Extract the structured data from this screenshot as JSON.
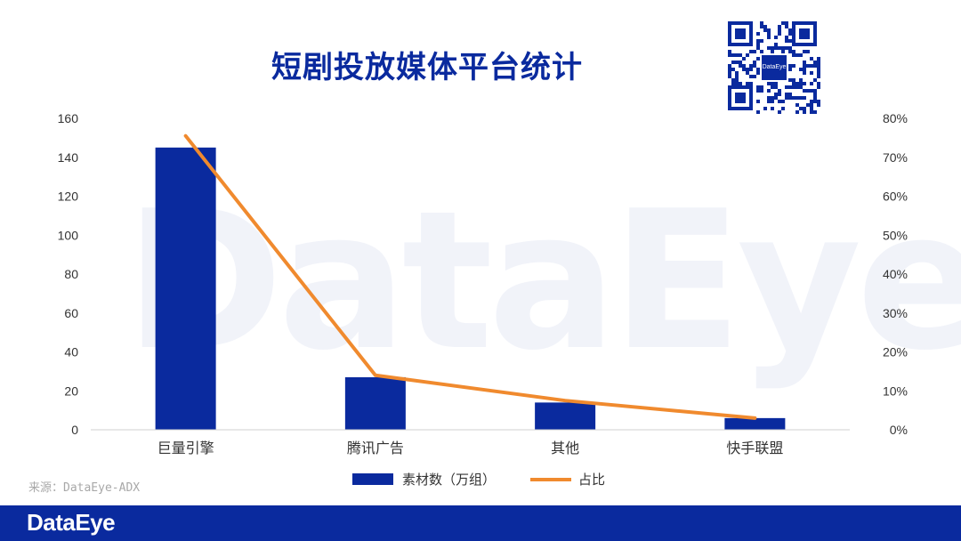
{
  "watermark": "DataEye",
  "qr_center_label": "DataEye",
  "source": "来源：DataEye-ADX",
  "footer_logo": "DataEye",
  "colors": {
    "bar": "#0a2a9e",
    "line": "#f08a2e",
    "axis": "#d0d0d0",
    "text": "#333333"
  },
  "chart_data": {
    "type": "bar",
    "title": "短剧投放媒体平台统计",
    "categories": [
      "巨量引擎",
      "腾讯广告",
      "其他",
      "快手联盟"
    ],
    "series": [
      {
        "name": "素材数（万组）",
        "type": "bar",
        "axis": "left",
        "values": [
          145,
          27,
          14,
          6
        ]
      },
      {
        "name": "占比",
        "type": "line",
        "axis": "right",
        "values": [
          75.5,
          14,
          7.5,
          3
        ]
      }
    ],
    "y_left": {
      "min": 0,
      "max": 160,
      "ticks": [
        0,
        20,
        40,
        60,
        80,
        100,
        120,
        140,
        160
      ]
    },
    "y_right": {
      "min": 0,
      "max": 80,
      "ticks": [
        "0%",
        "10%",
        "20%",
        "30%",
        "40%",
        "50%",
        "60%",
        "70%",
        "80%"
      ]
    },
    "legend_position": "bottom-center",
    "grid": false
  }
}
